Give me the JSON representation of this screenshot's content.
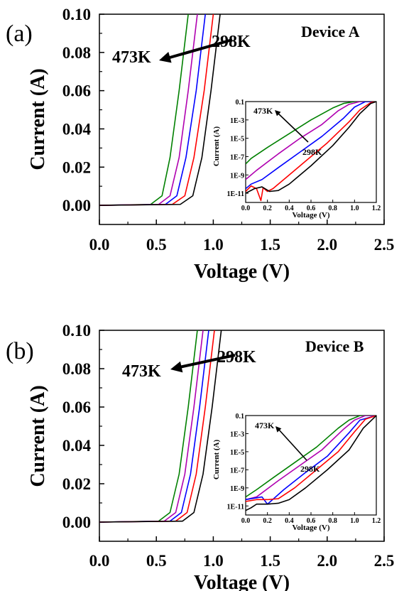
{
  "figure": {
    "panels": [
      {
        "letter": "(a)",
        "device": "Device A",
        "label_low_T": "473K",
        "label_high_T": "298K",
        "inset_label_low_T": "473K",
        "inset_label_high_T": "298K"
      },
      {
        "letter": "(b)",
        "device": "Device B",
        "label_low_T": "473K",
        "label_high_T": "298K",
        "inset_label_low_T": "473K",
        "inset_label_high_T": "298K"
      }
    ]
  },
  "colors": {
    "curve1": "#008000",
    "curve2": "#b000b0",
    "curve3": "#0000ff",
    "curve4": "#ff0000",
    "curve5": "#000000"
  },
  "chart_data": [
    {
      "type": "line",
      "xlabel": "Voltage (V)",
      "ylabel": "Current (A)",
      "xlim": [
        0.0,
        2.5
      ],
      "ylim": [
        -0.01,
        0.1
      ],
      "x_ticks": [
        "0.0",
        "0.5",
        "1.0",
        "1.5",
        "2.0",
        "2.5"
      ],
      "y_ticks": [
        "0.00",
        "0.02",
        "0.04",
        "0.06",
        "0.08",
        "0.10"
      ],
      "series": [
        {
          "color": "#008000",
          "x": [
            0.0,
            0.45,
            0.55,
            0.62,
            0.7,
            0.78
          ],
          "y": [
            0.0,
            0.0005,
            0.005,
            0.025,
            0.06,
            0.1
          ]
        },
        {
          "color": "#b000b0",
          "x": [
            0.0,
            0.52,
            0.62,
            0.7,
            0.78,
            0.86
          ],
          "y": [
            0.0,
            0.0005,
            0.005,
            0.025,
            0.06,
            0.1
          ]
        },
        {
          "color": "#0000ff",
          "x": [
            0.0,
            0.58,
            0.68,
            0.76,
            0.85,
            0.93
          ],
          "y": [
            0.0,
            0.0005,
            0.005,
            0.025,
            0.06,
            0.1
          ]
        },
        {
          "color": "#ff0000",
          "x": [
            0.0,
            0.64,
            0.75,
            0.83,
            0.92,
            1.0
          ],
          "y": [
            0.0,
            0.0005,
            0.005,
            0.025,
            0.06,
            0.1
          ]
        },
        {
          "color": "#000000",
          "x": [
            0.0,
            0.71,
            0.82,
            0.9,
            0.98,
            1.06
          ],
          "y": [
            0.0,
            0.0005,
            0.005,
            0.025,
            0.06,
            0.1
          ]
        }
      ],
      "annotations": [
        {
          "text": "473K"
        },
        {
          "text": "298K"
        },
        {
          "text": "Device A"
        },
        {
          "text": "(a)"
        }
      ],
      "inset": {
        "xlabel": "Voltage (V)",
        "ylabel": "Current (A)",
        "xlim": [
          0.0,
          1.2
        ],
        "ylim": [
          -12,
          -1
        ],
        "yscale": "log",
        "x_ticks": [
          "0.0",
          "0.2",
          "0.4",
          "0.6",
          "0.8",
          "1.0",
          "1.2"
        ],
        "y_ticks": [
          "0.1",
          "1E-3",
          "1E-5",
          "1E-7",
          "1E-9",
          "1E-11"
        ],
        "series": [
          {
            "color": "#008000",
            "x": [
              0.0,
              0.05,
              0.2,
              0.4,
              0.6,
              0.8,
              0.9,
              1.0,
              1.2
            ],
            "logy": [
              -7.8,
              -7.2,
              -6.0,
              -4.5,
              -3.0,
              -1.7,
              -1.2,
              -1.0,
              -1.0
            ]
          },
          {
            "color": "#b000b0",
            "x": [
              0.0,
              0.1,
              0.3,
              0.5,
              0.7,
              0.85,
              0.95,
              1.05,
              1.2
            ],
            "logy": [
              -9.5,
              -8.5,
              -6.7,
              -5.0,
              -3.5,
              -2.0,
              -1.3,
              -1.0,
              -1.0
            ]
          },
          {
            "color": "#0000ff",
            "x": [
              0.0,
              0.05,
              0.15,
              0.3,
              0.5,
              0.7,
              0.9,
              1.0,
              1.1,
              1.2
            ],
            "logy": [
              -10.5,
              -10.0,
              -9.5,
              -8.2,
              -6.5,
              -4.8,
              -2.8,
              -1.6,
              -1.0,
              -1.0
            ]
          },
          {
            "color": "#ff0000",
            "x": [
              0.0,
              0.05,
              0.1,
              0.14,
              0.16,
              0.2,
              0.25,
              0.35,
              0.55,
              0.75,
              0.95,
              1.05,
              1.15,
              1.2
            ],
            "logy": [
              -10.8,
              -10.2,
              -10.5,
              -11.8,
              -10.4,
              -10.8,
              -10.5,
              -9.5,
              -7.5,
              -5.5,
              -3.2,
              -1.9,
              -1.1,
              -1.0
            ]
          },
          {
            "color": "#000000",
            "x": [
              0.0,
              0.08,
              0.15,
              0.22,
              0.3,
              0.4,
              0.6,
              0.8,
              0.95,
              1.05,
              1.15,
              1.2
            ],
            "logy": [
              -11.0,
              -10.5,
              -10.3,
              -10.8,
              -10.7,
              -10.0,
              -8.0,
              -5.8,
              -3.8,
              -2.3,
              -1.2,
              -1.0
            ]
          }
        ],
        "annotations": [
          {
            "text": "473K"
          },
          {
            "text": "298K"
          }
        ]
      }
    },
    {
      "type": "line",
      "xlabel": "Voltage (V)",
      "ylabel": "Current (A)",
      "xlim": [
        0.0,
        2.5
      ],
      "ylim": [
        -0.01,
        0.1
      ],
      "x_ticks": [
        "0.0",
        "0.5",
        "1.0",
        "1.5",
        "2.0",
        "2.5"
      ],
      "y_ticks": [
        "0.00",
        "0.02",
        "0.04",
        "0.06",
        "0.08",
        "0.10"
      ],
      "series": [
        {
          "color": "#008000",
          "x": [
            0.0,
            0.52,
            0.62,
            0.7,
            0.78,
            0.86
          ],
          "y": [
            0.0,
            0.0005,
            0.005,
            0.025,
            0.06,
            0.1
          ]
        },
        {
          "color": "#b000b0",
          "x": [
            0.0,
            0.57,
            0.67,
            0.75,
            0.83,
            0.91
          ],
          "y": [
            0.0,
            0.0005,
            0.005,
            0.025,
            0.06,
            0.1
          ]
        },
        {
          "color": "#0000ff",
          "x": [
            0.0,
            0.62,
            0.72,
            0.8,
            0.88,
            0.96
          ],
          "y": [
            0.0,
            0.0005,
            0.005,
            0.025,
            0.06,
            0.1
          ]
        },
        {
          "color": "#ff0000",
          "x": [
            0.0,
            0.67,
            0.77,
            0.85,
            0.93,
            1.01
          ],
          "y": [
            0.0,
            0.0005,
            0.005,
            0.025,
            0.06,
            0.1
          ]
        },
        {
          "color": "#000000",
          "x": [
            0.0,
            0.73,
            0.83,
            0.91,
            0.99,
            1.07
          ],
          "y": [
            0.0,
            0.0005,
            0.005,
            0.025,
            0.06,
            0.1
          ]
        }
      ],
      "annotations": [
        {
          "text": "473K"
        },
        {
          "text": "298K"
        },
        {
          "text": "Device B"
        },
        {
          "text": "(b)"
        }
      ],
      "inset": {
        "xlabel": "Voltage (V)",
        "ylabel": "Current (A)",
        "xlim": [
          0.0,
          1.2
        ],
        "ylim": [
          -12,
          -1
        ],
        "yscale": "log",
        "x_ticks": [
          "0.0",
          "0.2",
          "0.4",
          "0.6",
          "0.8",
          "1.0",
          "1.2"
        ],
        "y_ticks": [
          "0.1",
          "1E-3",
          "1E-5",
          "1E-7",
          "1E-9",
          "1E-11"
        ],
        "series": [
          {
            "color": "#008000",
            "x": [
              0.0,
              0.1,
              0.25,
              0.45,
              0.65,
              0.85,
              0.95,
              1.05,
              1.2
            ],
            "logy": [
              -10.0,
              -9.2,
              -7.9,
              -6.2,
              -4.5,
              -2.4,
              -1.5,
              -1.0,
              -1.0
            ]
          },
          {
            "color": "#b000b0",
            "x": [
              0.0,
              0.1,
              0.3,
              0.5,
              0.7,
              0.9,
              1.0,
              1.1,
              1.2
            ],
            "logy": [
              -10.3,
              -10.0,
              -8.2,
              -6.5,
              -4.8,
              -2.5,
              -1.5,
              -1.0,
              -1.0
            ]
          },
          {
            "color": "#0000ff",
            "x": [
              0.0,
              0.15,
              0.2,
              0.35,
              0.55,
              0.75,
              0.95,
              1.05,
              1.2
            ],
            "logy": [
              -10.3,
              -10.0,
              -10.8,
              -9.2,
              -7.3,
              -5.5,
              -2.9,
              -1.5,
              -1.0
            ]
          },
          {
            "color": "#ff0000",
            "x": [
              0.0,
              0.1,
              0.2,
              0.3,
              0.45,
              0.65,
              0.85,
              1.0,
              1.1,
              1.2
            ],
            "logy": [
              -10.5,
              -10.3,
              -10.3,
              -10.2,
              -9.0,
              -7.0,
              -5.0,
              -2.8,
              -1.4,
              -1.0
            ]
          },
          {
            "color": "#000000",
            "x": [
              0.0,
              0.05,
              0.1,
              0.2,
              0.3,
              0.4,
              0.55,
              0.75,
              0.95,
              1.08,
              1.2
            ],
            "logy": [
              -11.5,
              -11.2,
              -10.8,
              -10.8,
              -10.7,
              -10.3,
              -9.0,
              -7.0,
              -4.8,
              -2.4,
              -1.0
            ]
          }
        ],
        "annotations": [
          {
            "text": "473K"
          },
          {
            "text": "298K"
          }
        ]
      }
    }
  ]
}
